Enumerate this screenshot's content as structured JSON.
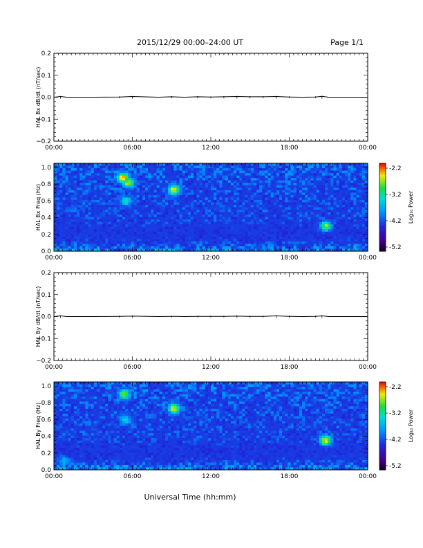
{
  "header": {
    "title": "2015/12/29  00:00–24:00 UT",
    "page": "Page 1/1"
  },
  "footer": {
    "xlabel": "Universal Time (hh:mm)"
  },
  "chart_data": [
    {
      "type": "line",
      "ylabel": "HAL Bx dB/dt (nT/sec)",
      "xlabel": "",
      "x_ticks": [
        "00:00",
        "06:00",
        "12:00",
        "18:00",
        "00:00"
      ],
      "xlim_hours": [
        0,
        24
      ],
      "y_ticks": [
        "0.2",
        "0.1",
        "0.0",
        "−0.1",
        "−0.2"
      ],
      "ylim": [
        -0.2,
        0.2
      ],
      "series": [
        {
          "x_hours": [
            0,
            0.5,
            1,
            3,
            5,
            6,
            8,
            9,
            10,
            11,
            12,
            13,
            14,
            15,
            16,
            17,
            18,
            19,
            20,
            20.5,
            21,
            22,
            24
          ],
          "values": [
            0.0,
            0.003,
            0.0,
            0.0,
            0.001,
            0.003,
            0.0,
            0.002,
            0.0,
            0.002,
            0.001,
            0.002,
            0.003,
            0.002,
            0.002,
            0.003,
            0.001,
            0.0,
            0.001,
            0.004,
            0.0,
            0.0,
            0.0
          ]
        }
      ],
      "grid": false
    },
    {
      "type": "heatmap",
      "ylabel": "HAL Bx Freq (Hz)",
      "x_ticks": [
        "00:00",
        "06:00",
        "12:00",
        "18:00",
        "00:00"
      ],
      "xlim_hours": [
        0,
        24
      ],
      "y_ticks": [
        "1.0",
        "0.8",
        "0.6",
        "0.4",
        "0.2",
        "0.0"
      ],
      "ylim": [
        0,
        1.05
      ],
      "colorbar": {
        "label": "Log₁₀ Power",
        "ticks": [
          "-2.2",
          "-3.2",
          "-4.2",
          "-5.2"
        ],
        "range": [
          -5.2,
          -2.2
        ]
      },
      "features": [
        {
          "t_hours": 5.3,
          "f_hz": 0.88,
          "level": -2.3
        },
        {
          "t_hours": 5.7,
          "f_hz": 0.82,
          "level": -2.6
        },
        {
          "t_hours": 5.5,
          "f_hz": 0.6,
          "level": -3.3
        },
        {
          "t_hours": 9.2,
          "f_hz": 0.73,
          "level": -2.5
        },
        {
          "t_hours": 20.8,
          "f_hz": 0.3,
          "level": -2.8
        }
      ]
    },
    {
      "type": "line",
      "ylabel": "HAL By dB/dt (nT/sec)",
      "xlabel": "",
      "x_ticks": [
        "00:00",
        "06:00",
        "12:00",
        "18:00",
        "00:00"
      ],
      "xlim_hours": [
        0,
        24
      ],
      "y_ticks": [
        "0.2",
        "0.1",
        "0.0",
        "−0.1",
        "−0.2"
      ],
      "ylim": [
        -0.2,
        0.2
      ],
      "series": [
        {
          "x_hours": [
            0,
            0.5,
            1,
            3,
            5,
            6,
            8,
            9,
            10,
            11,
            12,
            13,
            14,
            15,
            16,
            17,
            18,
            19,
            20,
            20.5,
            21,
            22,
            24
          ],
          "values": [
            0.0,
            0.003,
            0.0,
            0.0,
            0.001,
            0.002,
            0.0,
            0.001,
            0.0,
            0.001,
            0.001,
            0.001,
            0.002,
            0.001,
            0.001,
            0.003,
            0.001,
            0.0,
            0.001,
            0.003,
            0.0,
            0.0,
            0.0
          ]
        }
      ],
      "grid": false
    },
    {
      "type": "heatmap",
      "ylabel": "HAL By Freq (Hz)",
      "x_ticks": [
        "00:00",
        "06:00",
        "12:00",
        "18:00",
        "00:00"
      ],
      "xlim_hours": [
        0,
        24
      ],
      "y_ticks": [
        "1.0",
        "0.8",
        "0.6",
        "0.4",
        "0.2",
        "0.0"
      ],
      "ylim": [
        0,
        1.05
      ],
      "colorbar": {
        "label": "Log₁₀ Power",
        "ticks": [
          "-2.2",
          "-3.2",
          "-4.2",
          "-5.2"
        ],
        "range": [
          -5.2,
          -2.2
        ]
      },
      "features": [
        {
          "t_hours": 5.4,
          "f_hz": 0.9,
          "level": -2.8
        },
        {
          "t_hours": 5.5,
          "f_hz": 0.6,
          "level": -3.4
        },
        {
          "t_hours": 9.2,
          "f_hz": 0.73,
          "level": -2.6
        },
        {
          "t_hours": 20.8,
          "f_hz": 0.35,
          "level": -2.6
        },
        {
          "t_hours": 0.8,
          "f_hz": 0.1,
          "level": -3.6
        }
      ]
    }
  ]
}
